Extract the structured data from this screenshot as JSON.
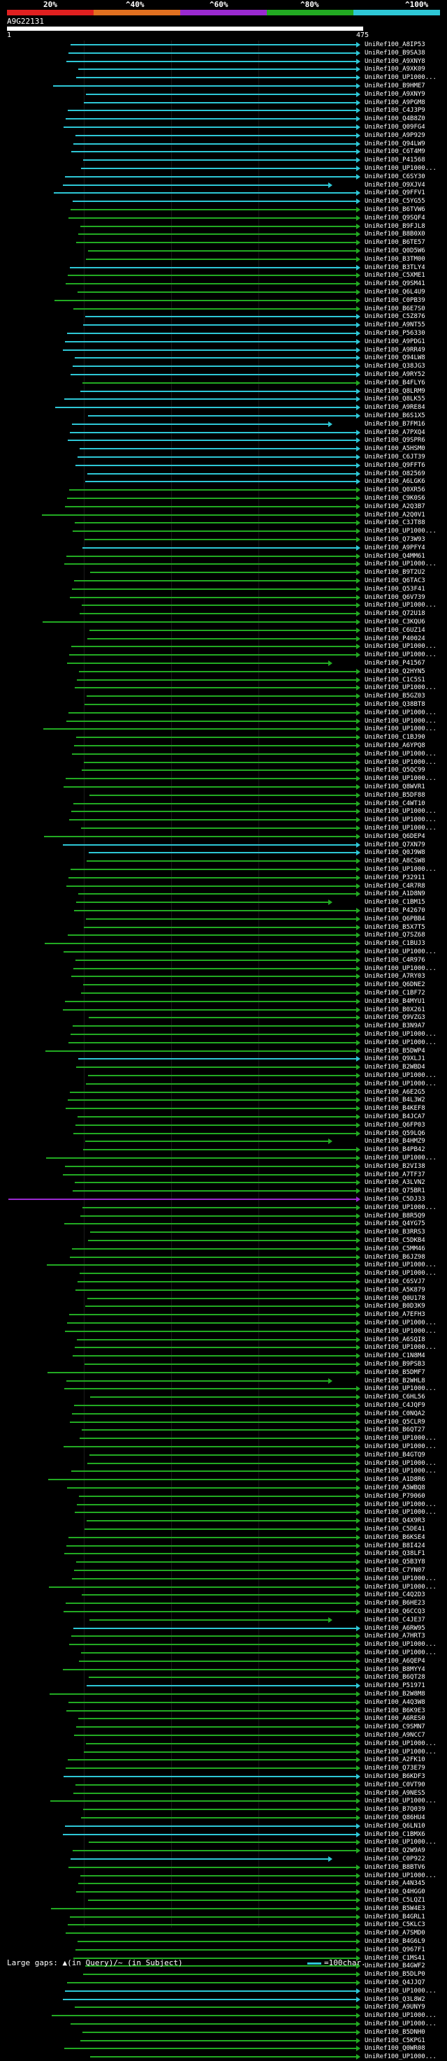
{
  "legend": {
    "labels": [
      "20%",
      "^40%",
      "^60%",
      "^80%",
      "^100%"
    ],
    "colors": [
      "#e02020",
      "#e07020",
      "#9a2ad0",
      "#22aa22",
      "#2ec7d6"
    ]
  },
  "query": {
    "name": "A9G22131",
    "start": "1",
    "end": "475"
  },
  "hits": [
    {
      "label": "UniRef100_A8IP53",
      "color": "#2ec7d6"
    },
    {
      "label": "UniRef100_B9SA38",
      "color": "#2ec7d6"
    },
    {
      "label": "UniRef100_A9XNY8",
      "color": "#2ec7d6"
    },
    {
      "label": "UniRef100_A9XK09",
      "color": "#2ec7d6"
    },
    {
      "label": "UniRef100_UP1000...",
      "color": "#2ec7d6"
    },
    {
      "label": "UniRef100_B9HME7",
      "color": "#2ec7d6"
    },
    {
      "label": "UniRef100_A9XNY9",
      "color": "#2ec7d6"
    },
    {
      "label": "UniRef100_A9PGM8",
      "color": "#2ec7d6"
    },
    {
      "label": "UniRef100_C4J3P9",
      "color": "#2ec7d6"
    },
    {
      "label": "UniRef100_Q4B8Z0",
      "color": "#2ec7d6"
    },
    {
      "label": "UniRef100_Q09FG4",
      "color": "#2ec7d6"
    },
    {
      "label": "UniRef100_A9P929",
      "color": "#2ec7d6"
    },
    {
      "label": "UniRef100_Q94LW9",
      "color": "#2ec7d6"
    },
    {
      "label": "UniRef100_C6T4M9",
      "color": "#2ec7d6"
    },
    {
      "label": "UniRef100_P41568",
      "color": "#2ec7d6"
    },
    {
      "label": "UniRef100_UP1000...",
      "color": "#2ec7d6"
    },
    {
      "label": "UniRef100_C6SY30",
      "color": "#2ec7d6"
    },
    {
      "label": "UniRef100_O9XJV4",
      "color": "#2ec7d6"
    },
    {
      "label": "UniRef100_Q9FFV1",
      "color": "#2ec7d6"
    },
    {
      "label": "UniRef100_C5YG55",
      "color": "#2ec7d6"
    },
    {
      "label": "UniRef100_B6TVW6",
      "color": "#22aa22"
    },
    {
      "label": "UniRef100_Q9SQF4",
      "color": "#22aa22"
    },
    {
      "label": "UniRef100_B9FJL8",
      "color": "#22aa22"
    },
    {
      "label": "UniRef100_B8B0X0",
      "color": "#22aa22"
    },
    {
      "label": "UniRef100_B6TE57",
      "color": "#22aa22"
    },
    {
      "label": "UniRef100_Q0D5W6",
      "color": "#22aa22"
    },
    {
      "label": "UniRef100_B3TM00",
      "color": "#22aa22"
    },
    {
      "label": "UniRef100_B3TLY4",
      "color": "#2ec7d6"
    },
    {
      "label": "UniRef100_C5XME1",
      "color": "#22aa22"
    },
    {
      "label": "UniRef100_Q9SM41",
      "color": "#22aa22"
    },
    {
      "label": "UniRef100_Q6L4U9",
      "color": "#22aa22"
    },
    {
      "label": "UniRef100_C0PB39",
      "color": "#22aa22"
    },
    {
      "label": "UniRef100_B6E7S0",
      "color": "#22aa22"
    },
    {
      "label": "UniRef100_C5Z876",
      "color": "#2ec7d6"
    },
    {
      "label": "UniRef100_A9NT55",
      "color": "#2ec7d6"
    },
    {
      "label": "UniRef100_P56330",
      "color": "#2ec7d6"
    },
    {
      "label": "UniRef100_A9PDG1",
      "color": "#2ec7d6"
    },
    {
      "label": "UniRef100_A9RR49",
      "color": "#2ec7d6"
    },
    {
      "label": "UniRef100_Q94LW8",
      "color": "#2ec7d6"
    },
    {
      "label": "UniRef100_Q38JG3",
      "color": "#2ec7d6"
    },
    {
      "label": "UniRef100_A9RY52",
      "color": "#2ec7d6"
    },
    {
      "label": "UniRef100_B4FLY6",
      "color": "#22aa22"
    },
    {
      "label": "UniRef100_Q8LRM9",
      "color": "#2ec7d6"
    },
    {
      "label": "UniRef100_Q8LK55",
      "color": "#2ec7d6"
    },
    {
      "label": "UniRef100_A9RE84",
      "color": "#2ec7d6"
    },
    {
      "label": "UniRef100_B6S1X5",
      "color": "#2ec7d6"
    },
    {
      "label": "UniRef100_B7FM16",
      "color": "#2ec7d6"
    },
    {
      "label": "UniRef100_A7PXQ4",
      "color": "#2ec7d6"
    },
    {
      "label": "UniRef100_Q9SPR6",
      "color": "#2ec7d6"
    },
    {
      "label": "UniRef100_A5HSM0",
      "color": "#2ec7d6"
    },
    {
      "label": "UniRef100_C6JT39",
      "color": "#2ec7d6"
    },
    {
      "label": "UniRef100_Q9FFT6",
      "color": "#2ec7d6"
    },
    {
      "label": "UniRef100_O82569",
      "color": "#2ec7d6"
    },
    {
      "label": "UniRef100_A6LGK6",
      "color": "#2ec7d6"
    },
    {
      "label": "UniRef100_Q0XR56",
      "color": "#22aa22"
    },
    {
      "label": "UniRef100_C9K0S6",
      "color": "#22aa22"
    },
    {
      "label": "UniRef100_A2Q3B7",
      "color": "#22aa22"
    },
    {
      "label": "UniRef100_A2Q0V1",
      "color": "#22aa22"
    },
    {
      "label": "UniRef100_C3JT88",
      "color": "#22aa22"
    },
    {
      "label": "UniRef100_UP1000...",
      "color": "#22aa22"
    },
    {
      "label": "UniRef100_Q73W93",
      "color": "#22aa22"
    },
    {
      "label": "UniRef100_A9PFY4",
      "color": "#2ec7d6"
    },
    {
      "label": "UniRef100_Q4MM61",
      "color": "#22aa22"
    },
    {
      "label": "UniRef100_UP1000...",
      "color": "#22aa22"
    },
    {
      "label": "UniRef100_B9T2U2",
      "color": "#22aa22"
    },
    {
      "label": "UniRef100_Q6TAC3",
      "color": "#22aa22"
    },
    {
      "label": "UniRef100_Q53F41",
      "color": "#22aa22"
    },
    {
      "label": "UniRef100_Q6V739",
      "color": "#22aa22"
    },
    {
      "label": "UniRef100_UP1000...",
      "color": "#22aa22"
    },
    {
      "label": "UniRef100_Q72U18",
      "color": "#22aa22"
    },
    {
      "label": "UniRef100_C3KQU6",
      "color": "#22aa22"
    },
    {
      "label": "UniRef100_C6UZ14",
      "color": "#22aa22"
    },
    {
      "label": "UniRef100_P40024",
      "color": "#22aa22"
    },
    {
      "label": "UniRef100_UP1000...",
      "color": "#22aa22"
    },
    {
      "label": "UniRef100_UP1000...",
      "color": "#22aa22"
    },
    {
      "label": "UniRef100_P41567",
      "color": "#22aa22"
    },
    {
      "label": "UniRef100_Q2HYN5",
      "color": "#22aa22"
    },
    {
      "label": "UniRef100_C1C5S1",
      "color": "#22aa22"
    },
    {
      "label": "UniRef100_UP1000...",
      "color": "#22aa22"
    },
    {
      "label": "UniRef100_B5GZ03",
      "color": "#22aa22"
    },
    {
      "label": "UniRef100_Q38BT8",
      "color": "#22aa22"
    },
    {
      "label": "UniRef100_UP1000...",
      "color": "#22aa22"
    },
    {
      "label": "UniRef100_UP1000...",
      "color": "#22aa22"
    },
    {
      "label": "UniRef100_UP1000...",
      "color": "#22aa22"
    },
    {
      "label": "UniRef100_C1BJ90",
      "color": "#22aa22"
    },
    {
      "label": "UniRef100_A6YPQ8",
      "color": "#22aa22"
    },
    {
      "label": "UniRef100_UP1000...",
      "color": "#22aa22"
    },
    {
      "label": "UniRef100_UP1000...",
      "color": "#22aa22"
    },
    {
      "label": "UniRef100_Q5QC99",
      "color": "#22aa22"
    },
    {
      "label": "UniRef100_UP1000...",
      "color": "#22aa22"
    },
    {
      "label": "UniRef100_Q8WVR1",
      "color": "#22aa22"
    },
    {
      "label": "UniRef100_B5DF88",
      "color": "#22aa22"
    },
    {
      "label": "UniRef100_C4WT10",
      "color": "#22aa22"
    },
    {
      "label": "UniRef100_UP1000...",
      "color": "#22aa22"
    },
    {
      "label": "UniRef100_UP1000...",
      "color": "#22aa22"
    },
    {
      "label": "UniRef100_UP1000...",
      "color": "#22aa22"
    },
    {
      "label": "UniRef100_Q6DEP4",
      "color": "#22aa22"
    },
    {
      "label": "UniRef100_Q7XN79",
      "color": "#2ec7d6"
    },
    {
      "label": "UniRef100_Q0J9W8",
      "color": "#2ec7d6"
    },
    {
      "label": "UniRef100_A8CSW8",
      "color": "#22aa22"
    },
    {
      "label": "UniRef100_UP1000...",
      "color": "#22aa22"
    },
    {
      "label": "UniRef100_P32911",
      "color": "#22aa22"
    },
    {
      "label": "UniRef100_C4R7R8",
      "color": "#22aa22"
    },
    {
      "label": "UniRef100_A1D8N9",
      "color": "#22aa22"
    },
    {
      "label": "UniRef100_C1BM15",
      "color": "#22aa22"
    },
    {
      "label": "UniRef100_P42670",
      "color": "#22aa22"
    },
    {
      "label": "UniRef100_Q6PBB4",
      "color": "#22aa22"
    },
    {
      "label": "UniRef100_B5X7T5",
      "color": "#22aa22"
    },
    {
      "label": "UniRef100_Q7SZ68",
      "color": "#22aa22"
    },
    {
      "label": "UniRef100_C1BUJ3",
      "color": "#22aa22"
    },
    {
      "label": "UniRef100_UP1000...",
      "color": "#22aa22"
    },
    {
      "label": "UniRef100_C4R976",
      "color": "#22aa22"
    },
    {
      "label": "UniRef100_UP1000...",
      "color": "#22aa22"
    },
    {
      "label": "UniRef100_A7RY03",
      "color": "#22aa22"
    },
    {
      "label": "UniRef100_Q6DNE2",
      "color": "#22aa22"
    },
    {
      "label": "UniRef100_C1BF72",
      "color": "#22aa22"
    },
    {
      "label": "UniRef100_B4MYU1",
      "color": "#22aa22"
    },
    {
      "label": "UniRef100_B0X261",
      "color": "#22aa22"
    },
    {
      "label": "UniRef100_Q9VZG3",
      "color": "#22aa22"
    },
    {
      "label": "UniRef100_B3N9A7",
      "color": "#22aa22"
    },
    {
      "label": "UniRef100_UP1000...",
      "color": "#22aa22"
    },
    {
      "label": "UniRef100_UP1000...",
      "color": "#22aa22"
    },
    {
      "label": "UniRef100_B5DWP4",
      "color": "#22aa22"
    },
    {
      "label": "UniRef100_Q9XLJ1",
      "color": "#2ec7d6"
    },
    {
      "label": "UniRef100_B2WBD4",
      "color": "#22aa22"
    },
    {
      "label": "UniRef100_UP1000...",
      "color": "#22aa22"
    },
    {
      "label": "UniRef100_UP1000...",
      "color": "#22aa22"
    },
    {
      "label": "UniRef100_A6E2G5",
      "color": "#22aa22"
    },
    {
      "label": "UniRef100_B4L3W2",
      "color": "#22aa22"
    },
    {
      "label": "UniRef100_B4KEF8",
      "color": "#22aa22"
    },
    {
      "label": "UniRef100_B4JCA7",
      "color": "#22aa22"
    },
    {
      "label": "UniRef100_Q6FP03",
      "color": "#22aa22"
    },
    {
      "label": "UniRef100_Q59LQ6",
      "color": "#22aa22"
    },
    {
      "label": "UniRef100_B4HMZ9",
      "color": "#22aa22"
    },
    {
      "label": "UniRef100_B4PB42",
      "color": "#22aa22"
    },
    {
      "label": "UniRef100_UP1000...",
      "color": "#22aa22"
    },
    {
      "label": "UniRef100_B2VI38",
      "color": "#22aa22"
    },
    {
      "label": "UniRef100_A7TF37",
      "color": "#22aa22"
    },
    {
      "label": "UniRef100_A3LVN2",
      "color": "#22aa22"
    },
    {
      "label": "UniRef100_Q75BR1",
      "color": "#22aa22"
    },
    {
      "label": "UniRef100_C5DJ33",
      "color": "#9a2ad0"
    },
    {
      "label": "UniRef100_UP1000...",
      "color": "#22aa22"
    },
    {
      "label": "UniRef100_B8R5Q9",
      "color": "#22aa22"
    },
    {
      "label": "UniRef100_Q4YG75",
      "color": "#22aa22"
    },
    {
      "label": "UniRef100_B3RRS3",
      "color": "#22aa22"
    },
    {
      "label": "UniRef100_C5DKB4",
      "color": "#22aa22"
    },
    {
      "label": "UniRef100_C5MM46",
      "color": "#22aa22"
    },
    {
      "label": "UniRef100_B6JZ98",
      "color": "#22aa22"
    },
    {
      "label": "UniRef100_UP1000...",
      "color": "#22aa22"
    },
    {
      "label": "UniRef100_UP1000...",
      "color": "#22aa22"
    },
    {
      "label": "UniRef100_C6SVJ7",
      "color": "#22aa22"
    },
    {
      "label": "UniRef100_A5K879",
      "color": "#22aa22"
    },
    {
      "label": "UniRef100_Q0U178",
      "color": "#22aa22"
    },
    {
      "label": "UniRef100_B0D3K9",
      "color": "#22aa22"
    },
    {
      "label": "UniRef100_A7EFH3",
      "color": "#22aa22"
    },
    {
      "label": "UniRef100_UP1000...",
      "color": "#22aa22"
    },
    {
      "label": "UniRef100_UP1000...",
      "color": "#22aa22"
    },
    {
      "label": "UniRef100_A6SQI8",
      "color": "#22aa22"
    },
    {
      "label": "UniRef100_UP1000...",
      "color": "#22aa22"
    },
    {
      "label": "UniRef100_C1N8M4",
      "color": "#22aa22"
    },
    {
      "label": "UniRef100_B9PSB3",
      "color": "#22aa22"
    },
    {
      "label": "UniRef100_B5DMF7",
      "color": "#22aa22"
    },
    {
      "label": "UniRef100_B2WHL8",
      "color": "#22aa22"
    },
    {
      "label": "UniRef100_UP1000...",
      "color": "#22aa22"
    },
    {
      "label": "UniRef100_C6HL56",
      "color": "#22aa22"
    },
    {
      "label": "UniRef100_C4JQF9",
      "color": "#22aa22"
    },
    {
      "label": "UniRef100_C0NQA2",
      "color": "#22aa22"
    },
    {
      "label": "UniRef100_Q5CLR9",
      "color": "#22aa22"
    },
    {
      "label": "UniRef100_B6QT27",
      "color": "#22aa22"
    },
    {
      "label": "UniRef100_UP1000...",
      "color": "#22aa22"
    },
    {
      "label": "UniRef100_UP1000...",
      "color": "#22aa22"
    },
    {
      "label": "UniRef100_B4GTQ9",
      "color": "#22aa22"
    },
    {
      "label": "UniRef100_UP1000...",
      "color": "#22aa22"
    },
    {
      "label": "UniRef100_UP1000...",
      "color": "#22aa22"
    },
    {
      "label": "UniRef100_A1D8R6",
      "color": "#22aa22"
    },
    {
      "label": "UniRef100_A5WBQ8",
      "color": "#22aa22"
    },
    {
      "label": "UniRef100_P79060",
      "color": "#22aa22"
    },
    {
      "label": "UniRef100_UP1000...",
      "color": "#22aa22"
    },
    {
      "label": "UniRef100_UP1000...",
      "color": "#22aa22"
    },
    {
      "label": "UniRef100_Q4X9R3",
      "color": "#22aa22"
    },
    {
      "label": "UniRef100_C5DE41",
      "color": "#22aa22"
    },
    {
      "label": "UniRef100_B6KSE4",
      "color": "#22aa22"
    },
    {
      "label": "UniRef100_B8I424",
      "color": "#22aa22"
    },
    {
      "label": "UniRef100_Q38LF1",
      "color": "#22aa22"
    },
    {
      "label": "UniRef100_Q5B3Y8",
      "color": "#22aa22"
    },
    {
      "label": "UniRef100_C7YN07",
      "color": "#22aa22"
    },
    {
      "label": "UniRef100_UP1000...",
      "color": "#22aa22"
    },
    {
      "label": "UniRef100_UP1000...",
      "color": "#22aa22"
    },
    {
      "label": "UniRef100_C4Q2D3",
      "color": "#22aa22"
    },
    {
      "label": "UniRef100_B6HE23",
      "color": "#22aa22"
    },
    {
      "label": "UniRef100_Q6CCQ3",
      "color": "#22aa22"
    },
    {
      "label": "UniRef100_C4JE37",
      "color": "#22aa22"
    },
    {
      "label": "UniRef100_A6RW95",
      "color": "#2ec7d6"
    },
    {
      "label": "UniRef100_A7HRT3",
      "color": "#22aa22"
    },
    {
      "label": "UniRef100_UP1000...",
      "color": "#22aa22"
    },
    {
      "label": "UniRef100_UP1000...",
      "color": "#22aa22"
    },
    {
      "label": "UniRef100_A6QEP4",
      "color": "#22aa22"
    },
    {
      "label": "UniRef100_B8MYY4",
      "color": "#22aa22"
    },
    {
      "label": "UniRef100_B6QT28",
      "color": "#22aa22"
    },
    {
      "label": "UniRef100_P51971",
      "color": "#2ec7d6"
    },
    {
      "label": "UniRef100_B2W8M8",
      "color": "#22aa22"
    },
    {
      "label": "UniRef100_A4Q3W8",
      "color": "#22aa22"
    },
    {
      "label": "UniRef100_B6K9E3",
      "color": "#22aa22"
    },
    {
      "label": "UniRef100_A6RES0",
      "color": "#22aa22"
    },
    {
      "label": "UniRef100_C9SMN7",
      "color": "#22aa22"
    },
    {
      "label": "UniRef100_A9NCC7",
      "color": "#22aa22"
    },
    {
      "label": "UniRef100_UP1000...",
      "color": "#22aa22"
    },
    {
      "label": "UniRef100_UP1000...",
      "color": "#22aa22"
    },
    {
      "label": "UniRef100_A2FK10",
      "color": "#22aa22"
    },
    {
      "label": "UniRef100_Q73E79",
      "color": "#22aa22"
    },
    {
      "label": "UniRef100_B6KDF3",
      "color": "#2ec7d6"
    },
    {
      "label": "UniRef100_C0VT90",
      "color": "#22aa22"
    },
    {
      "label": "UniRef100_A9NES5",
      "color": "#22aa22"
    },
    {
      "label": "UniRef100_UP1000...",
      "color": "#22aa22"
    },
    {
      "label": "UniRef100_B7Q039",
      "color": "#22aa22"
    },
    {
      "label": "UniRef100_Q86HU4",
      "color": "#22aa22"
    },
    {
      "label": "UniRef100_Q6LN10",
      "color": "#2ec7d6"
    },
    {
      "label": "UniRef100_C1BMX6",
      "color": "#2ec7d6"
    },
    {
      "label": "UniRef100_UP1000...",
      "color": "#22aa22"
    },
    {
      "label": "UniRef100_Q2W9A9",
      "color": "#22aa22"
    },
    {
      "label": "UniRef100_C0P922",
      "color": "#2ec7d6"
    },
    {
      "label": "UniRef100_B8BTV6",
      "color": "#22aa22"
    },
    {
      "label": "UniRef100_UP1000...",
      "color": "#22aa22"
    },
    {
      "label": "UniRef100_A4N345",
      "color": "#22aa22"
    },
    {
      "label": "UniRef100_Q4HGG0",
      "color": "#22aa22"
    },
    {
      "label": "UniRef100_C5LQZ1",
      "color": "#22aa22"
    },
    {
      "label": "UniRef100_B5W4E3",
      "color": "#22aa22"
    },
    {
      "label": "UniRef100_B4GRL1",
      "color": "#22aa22"
    },
    {
      "label": "UniRef100_C5KLC3",
      "color": "#22aa22"
    },
    {
      "label": "UniRef100_A7SMD0",
      "color": "#22aa22"
    },
    {
      "label": "UniRef100_B4G6L9",
      "color": "#22aa22"
    },
    {
      "label": "UniRef100_Q967F1",
      "color": "#22aa22"
    },
    {
      "label": "UniRef100_C1MS41",
      "color": "#22aa22"
    },
    {
      "label": "UniRef100_B4GWF2",
      "color": "#22aa22"
    },
    {
      "label": "UniRef100_B5DLP0",
      "color": "#22aa22"
    },
    {
      "label": "UniRef100_Q4JJQ7",
      "color": "#22aa22"
    },
    {
      "label": "UniRef100_UP1000...",
      "color": "#2ec7d6"
    },
    {
      "label": "UniRef100_Q3L8W2",
      "color": "#2ec7d6"
    },
    {
      "label": "UniRef100_A9UNY9",
      "color": "#22aa22"
    },
    {
      "label": "UniRef100_UP1000...",
      "color": "#22aa22"
    },
    {
      "label": "UniRef100_UP1000...",
      "color": "#22aa22"
    },
    {
      "label": "UniRef100_B5DNH0",
      "color": "#22aa22"
    },
    {
      "label": "UniRef100_C5KPG1",
      "color": "#22aa22"
    },
    {
      "label": "UniRef100_Q0WR08",
      "color": "#22aa22"
    },
    {
      "label": "UniRef100_UP1000...",
      "color": "#22aa22"
    }
  ],
  "footer": {
    "left": "Large gaps: ▲(in Query)/~ (in Subject)",
    "right": "=100char."
  }
}
